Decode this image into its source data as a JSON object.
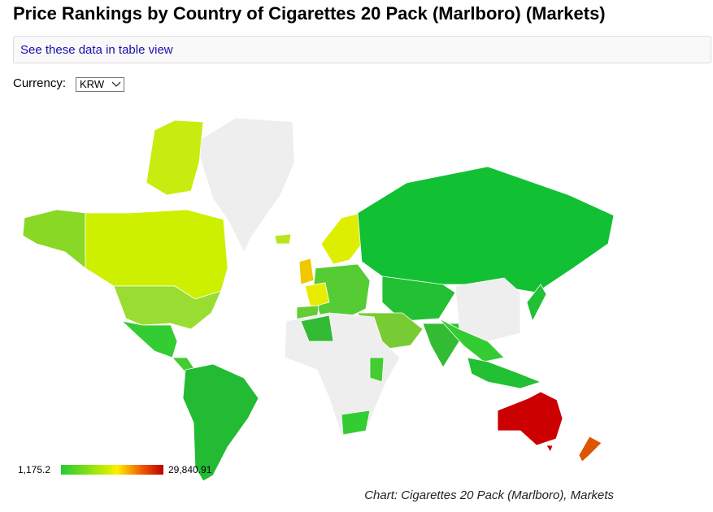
{
  "header": {
    "title": "Price Rankings by Country of Cigarettes 20 Pack (Marlboro) (Markets)"
  },
  "table_link": "See these data in table view",
  "currency": {
    "label": "Currency:",
    "selected": "KRW"
  },
  "legend": {
    "min": "1,175.2",
    "max": "29,840.91"
  },
  "caption": "Chart: Cigarettes 20 Pack (Marlboro), Markets"
}
